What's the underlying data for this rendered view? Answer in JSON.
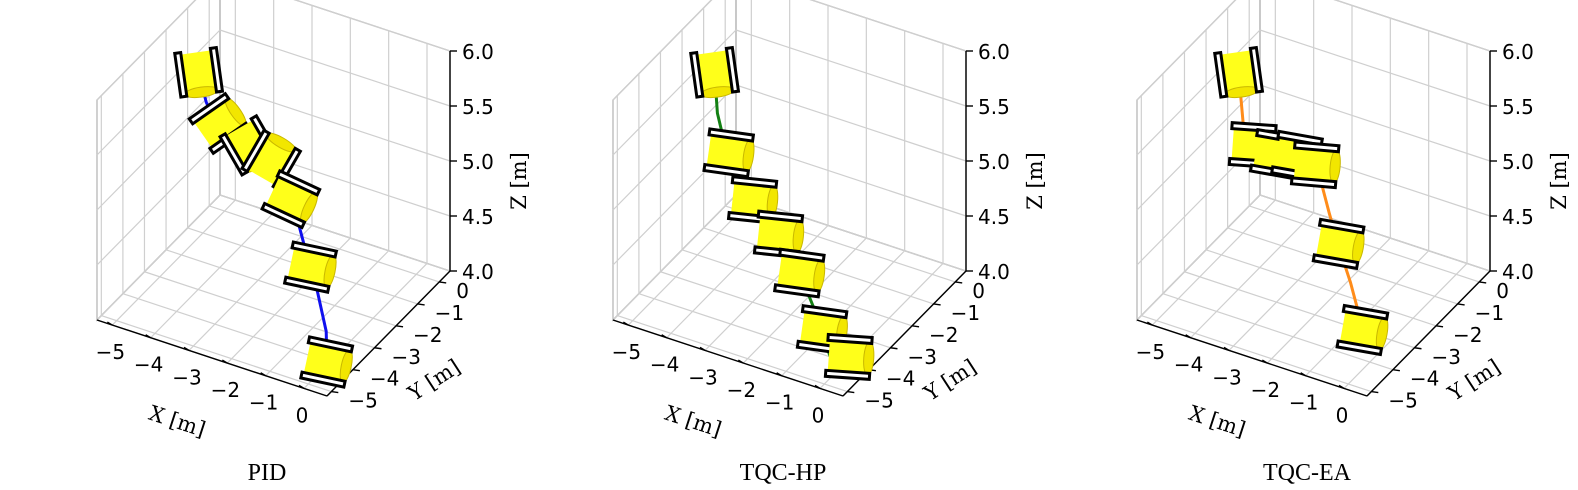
{
  "chart_data": [
    {
      "type": "line3d",
      "caption": "PID",
      "color": "#1010ee",
      "xlabel": "X [m]",
      "ylabel": "Y [m]",
      "zlabel": "Z [m]",
      "xlim": [
        -5.4,
        0.6
      ],
      "ylim": [
        -5.2,
        0.5
      ],
      "zlim": [
        4.0,
        6.0
      ],
      "xticks": [
        -5,
        -4,
        -3,
        -2,
        -1,
        0
      ],
      "yticks": [
        0,
        -1,
        -2,
        -3,
        -4,
        -5
      ],
      "zticks": [
        4.0,
        4.5,
        5.0,
        5.5,
        6.0
      ],
      "xtick_labels": [
        "−5",
        "−4",
        "−3",
        "−2",
        "−1",
        "0"
      ],
      "ytick_labels": [
        "0",
        "−1",
        "−2",
        "−3",
        "−4",
        "−5"
      ],
      "ztick_labels": [
        "4.0",
        "4.5",
        "5.0",
        "5.5",
        "6.0"
      ],
      "grid": true,
      "path": [
        [
          -5.0,
          -1.2,
          5.5
        ],
        [
          -4.8,
          -1.2,
          5.25
        ],
        [
          -4.5,
          -1.3,
          5.13
        ],
        [
          -4.2,
          -1.5,
          5.2
        ],
        [
          -3.9,
          -1.6,
          5.15
        ],
        [
          -3.5,
          -1.7,
          5.12
        ],
        [
          -3.1,
          -1.9,
          5.16
        ],
        [
          -2.7,
          -2.1,
          5.16
        ],
        [
          -2.3,
          -2.3,
          5.14
        ],
        [
          -1.9,
          -2.6,
          5.08
        ],
        [
          -1.5,
          -2.9,
          4.95
        ],
        [
          -1.1,
          -3.2,
          4.75
        ],
        [
          -0.7,
          -3.4,
          4.5
        ],
        [
          -0.35,
          -3.55,
          4.15
        ],
        [
          -0.3,
          -3.6,
          3.85
        ]
      ],
      "drones": [
        {
          "x": -5.0,
          "y": -1.2,
          "z": 5.5,
          "tilt": 82
        },
        {
          "x": -4.35,
          "y": -1.4,
          "z": 5.15,
          "tilt": -35
        },
        {
          "x": -3.4,
          "y": -1.7,
          "z": 5.12,
          "tilt": 60
        },
        {
          "x": -2.6,
          "y": -2.1,
          "z": 5.16,
          "tilt": -60
        },
        {
          "x": -1.75,
          "y": -2.7,
          "z": 5.02,
          "tilt": 25
        },
        {
          "x": -0.9,
          "y": -3.3,
          "z": 4.62,
          "tilt": 12
        },
        {
          "x": -0.32,
          "y": -3.58,
          "z": 3.88,
          "tilt": 12
        }
      ]
    },
    {
      "type": "line3d",
      "caption": "TQC-HP",
      "color": "#138013",
      "xlabel": "X [m]",
      "ylabel": "Y [m]",
      "zlabel": "Z [m]",
      "xlim": [
        -5.4,
        0.6
      ],
      "ylim": [
        -5.2,
        0.5
      ],
      "zlim": [
        4.0,
        6.0
      ],
      "xticks": [
        -5,
        -4,
        -3,
        -2,
        -1,
        0
      ],
      "yticks": [
        0,
        -1,
        -2,
        -3,
        -4,
        -5
      ],
      "zticks": [
        4.0,
        4.5,
        5.0,
        5.5,
        6.0
      ],
      "xtick_labels": [
        "−5",
        "−4",
        "−3",
        "−2",
        "−1",
        "0"
      ],
      "ytick_labels": [
        "0",
        "−1",
        "−2",
        "−3",
        "−4",
        "−5"
      ],
      "ztick_labels": [
        "4.0",
        "4.5",
        "5.0",
        "5.5",
        "6.0"
      ],
      "grid": true,
      "path": [
        [
          -5.0,
          -1.2,
          5.5
        ],
        [
          -4.9,
          -1.25,
          5.15
        ],
        [
          -4.6,
          -1.35,
          4.85
        ],
        [
          -4.2,
          -1.55,
          4.7
        ],
        [
          -3.7,
          -1.75,
          4.6
        ],
        [
          -3.2,
          -1.95,
          4.52
        ],
        [
          -2.7,
          -2.2,
          4.45
        ],
        [
          -2.2,
          -2.5,
          4.35
        ],
        [
          -1.7,
          -2.8,
          4.22
        ],
        [
          -1.2,
          -3.1,
          4.05
        ],
        [
          -0.8,
          -3.35,
          3.85
        ],
        [
          -0.5,
          -3.5,
          3.75
        ],
        [
          -0.25,
          -3.6,
          3.82
        ],
        [
          -0.1,
          -3.62,
          4.0
        ]
      ],
      "drones": [
        {
          "x": -5.0,
          "y": -1.2,
          "z": 5.5,
          "tilt": 82
        },
        {
          "x": -4.55,
          "y": -1.35,
          "z": 4.85,
          "tilt": 8
        },
        {
          "x": -3.7,
          "y": -1.75,
          "z": 4.6,
          "tilt": 6
        },
        {
          "x": -2.8,
          "y": -2.15,
          "z": 4.47,
          "tilt": 6
        },
        {
          "x": -2.0,
          "y": -2.6,
          "z": 4.3,
          "tilt": 8
        },
        {
          "x": -1.1,
          "y": -3.15,
          "z": 4.0,
          "tilt": 8
        },
        {
          "x": -0.15,
          "y": -3.6,
          "z": 3.95,
          "tilt": 4
        }
      ]
    },
    {
      "type": "line3d",
      "caption": "TQC-EA",
      "color": "#ff8c1a",
      "xlabel": "X [m]",
      "ylabel": "Y [m]",
      "zlabel": "Z [m]",
      "xlim": [
        -5.4,
        0.6
      ],
      "ylim": [
        -5.2,
        0.5
      ],
      "zlim": [
        4.0,
        6.0
      ],
      "xticks": [
        -5,
        -4,
        -3,
        -2,
        -1,
        0
      ],
      "yticks": [
        0,
        -1,
        -2,
        -3,
        -4,
        -5
      ],
      "zticks": [
        4.0,
        4.5,
        5.0,
        5.5,
        6.0
      ],
      "xtick_labels": [
        "−5",
        "−4",
        "−3",
        "−2",
        "−1",
        "0"
      ],
      "ytick_labels": [
        "0",
        "−1",
        "−2",
        "−3",
        "−4",
        "−5"
      ],
      "ztick_labels": [
        "4.0",
        "4.5",
        "5.0",
        "5.5",
        "6.0"
      ],
      "grid": true,
      "path": [
        [
          -5.0,
          -1.2,
          5.5
        ],
        [
          -4.85,
          -1.25,
          5.05
        ],
        [
          -4.5,
          -1.35,
          4.9
        ],
        [
          -4.1,
          -1.5,
          4.98
        ],
        [
          -3.7,
          -1.7,
          5.02
        ],
        [
          -3.3,
          -1.9,
          5.08
        ],
        [
          -2.9,
          -2.1,
          5.2
        ],
        [
          -2.5,
          -2.35,
          5.26
        ],
        [
          -2.1,
          -2.55,
          5.12
        ],
        [
          -1.7,
          -2.85,
          4.92
        ],
        [
          -1.3,
          -3.1,
          4.7
        ],
        [
          -0.9,
          -3.3,
          4.48
        ],
        [
          -0.55,
          -3.5,
          4.25
        ],
        [
          -0.3,
          -3.6,
          4.0
        ]
      ],
      "drones": [
        {
          "x": -5.0,
          "y": -1.2,
          "z": 5.5,
          "tilt": 82
        },
        {
          "x": -4.55,
          "y": -1.35,
          "z": 4.92,
          "tilt": 4
        },
        {
          "x": -3.75,
          "y": -1.7,
          "z": 5.0,
          "tilt": 10
        },
        {
          "x": -3.0,
          "y": -2.05,
          "z": 5.14,
          "tilt": 10
        },
        {
          "x": -2.3,
          "y": -2.45,
          "z": 5.22,
          "tilt": 5
        },
        {
          "x": -1.35,
          "y": -3.05,
          "z": 4.73,
          "tilt": 10
        },
        {
          "x": -0.45,
          "y": -3.55,
          "z": 4.15,
          "tilt": 10
        }
      ]
    }
  ]
}
